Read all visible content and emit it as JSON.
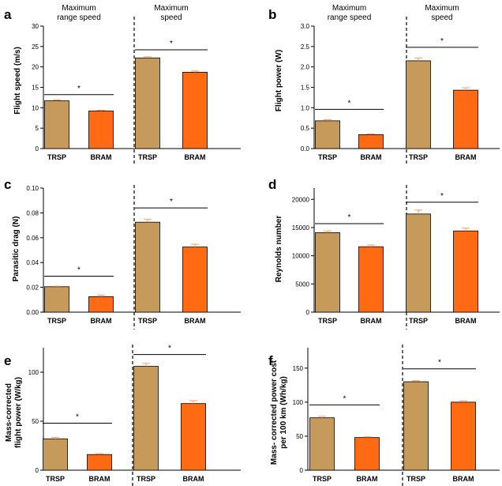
{
  "colors": {
    "TRSP": "#c59a5a",
    "BRAM": "#ff6a13",
    "error_bar": "#ff9a66",
    "axis": "#000000"
  },
  "group_labels": {
    "range": [
      "Maximum",
      "range speed"
    ],
    "max": [
      "Maximum",
      "speed"
    ]
  },
  "chart_data": [
    {
      "panel": "a",
      "type": "bar",
      "ylabel": [
        "Flight speed (m/s)"
      ],
      "ylim": [
        0,
        30
      ],
      "yticks": [
        "0",
        "5",
        "10",
        "15",
        "20",
        "25",
        "30"
      ],
      "ytick_values": [
        0,
        5,
        10,
        15,
        20,
        25,
        30
      ],
      "categories": [
        "TRSP",
        "BRAM",
        "TRSP",
        "BRAM"
      ],
      "groups": [
        "Maximum range speed",
        "Maximum range speed",
        "Maximum speed",
        "Maximum speed"
      ],
      "values": [
        11.7,
        9.2,
        22.2,
        18.7
      ],
      "errors": [
        0.2,
        0.2,
        0.3,
        0.3
      ],
      "significance": [
        {
          "bars": [
            0,
            1
          ],
          "y": 13.2,
          "mark": "*"
        },
        {
          "bars": [
            2,
            3
          ],
          "y": 24.2,
          "mark": "*"
        }
      ],
      "show_group_labels": true
    },
    {
      "panel": "b",
      "type": "bar",
      "ylabel": [
        "Flight power (W)"
      ],
      "ylim": [
        0,
        3.0
      ],
      "yticks": [
        "0.0",
        "0.5",
        "1.0",
        "1.5",
        "2.0",
        "2.5",
        "3.0"
      ],
      "ytick_values": [
        0,
        0.5,
        1.0,
        1.5,
        2.0,
        2.5,
        3.0
      ],
      "categories": [
        "TRSP",
        "BRAM",
        "TRSP",
        "BRAM"
      ],
      "groups": [
        "Maximum range speed",
        "Maximum range speed",
        "Maximum speed",
        "Maximum speed"
      ],
      "values": [
        0.68,
        0.34,
        2.15,
        1.43
      ],
      "errors": [
        0.03,
        0.02,
        0.07,
        0.06
      ],
      "significance": [
        {
          "bars": [
            0,
            1
          ],
          "y": 0.96,
          "mark": "*"
        },
        {
          "bars": [
            2,
            3
          ],
          "y": 2.48,
          "mark": "*"
        }
      ],
      "show_group_labels": true
    },
    {
      "panel": "c",
      "type": "bar",
      "ylabel": [
        "Parasitic drag (N)"
      ],
      "ylim": [
        0,
        0.1
      ],
      "yticks": [
        "0.00",
        "0.02",
        "0.04",
        "0.06",
        "0.08",
        "0.10"
      ],
      "ytick_values": [
        0,
        0.02,
        0.04,
        0.06,
        0.08,
        0.1
      ],
      "categories": [
        "TRSP",
        "BRAM",
        "TRSP",
        "BRAM"
      ],
      "groups": [
        "Maximum range speed",
        "Maximum range speed",
        "Maximum speed",
        "Maximum speed"
      ],
      "values": [
        0.0205,
        0.0125,
        0.0725,
        0.0525
      ],
      "errors": [
        0.0004,
        0.0012,
        0.0022,
        0.0022
      ],
      "significance": [
        {
          "bars": [
            0,
            1
          ],
          "y": 0.029,
          "mark": "*"
        },
        {
          "bars": [
            2,
            3
          ],
          "y": 0.084,
          "mark": "*"
        }
      ],
      "show_group_labels": false
    },
    {
      "panel": "d",
      "type": "bar",
      "ylabel": [
        "Reynolds number"
      ],
      "ylim": [
        0,
        22000
      ],
      "yticks": [
        "0",
        "5000",
        "10000",
        "15000",
        "20000"
      ],
      "ytick_values": [
        0,
        5000,
        10000,
        15000,
        20000
      ],
      "categories": [
        "TRSP",
        "BRAM",
        "TRSP",
        "BRAM"
      ],
      "groups": [
        "Maximum range speed",
        "Maximum range speed",
        "Maximum speed",
        "Maximum speed"
      ],
      "values": [
        14100,
        11600,
        17400,
        14400
      ],
      "errors": [
        300,
        300,
        700,
        500
      ],
      "significance": [
        {
          "bars": [
            0,
            1
          ],
          "y": 15700,
          "mark": "*"
        },
        {
          "bars": [
            2,
            3
          ],
          "y": 19500,
          "mark": "*"
        }
      ],
      "show_group_labels": false
    },
    {
      "panel": "e",
      "type": "bar",
      "ylabel": [
        "Mass-corrected",
        "flight power (W/kg)"
      ],
      "ylim": [
        0,
        125
      ],
      "yticks": [
        "0",
        "50",
        "100"
      ],
      "ytick_values": [
        0,
        50,
        100
      ],
      "categories": [
        "TRSP",
        "BRAM",
        "TRSP",
        "BRAM"
      ],
      "groups": [
        "Maximum range speed",
        "Maximum range speed",
        "Maximum speed",
        "Maximum speed"
      ],
      "values": [
        32,
        16,
        106,
        68
      ],
      "errors": [
        1.5,
        0.8,
        3,
        3
      ],
      "significance": [
        {
          "bars": [
            0,
            1
          ],
          "y": 48,
          "mark": "*"
        },
        {
          "bars": [
            2,
            3
          ],
          "y": 118,
          "mark": "*"
        }
      ],
      "show_group_labels": false
    },
    {
      "panel": "f",
      "type": "bar",
      "ylabel": [
        "Mass- corrected power cost",
        "per 100 km (Wh/kg)"
      ],
      "ylim": [
        0,
        180
      ],
      "yticks": [
        "0",
        "50",
        "100",
        "150"
      ],
      "ytick_values": [
        0,
        50,
        100,
        150
      ],
      "categories": [
        "TRSP",
        "BRAM",
        "TRSP",
        "BRAM"
      ],
      "groups": [
        "Maximum range speed",
        "Maximum range speed",
        "Maximum speed",
        "Maximum speed"
      ],
      "values": [
        77,
        48,
        130,
        100
      ],
      "errors": [
        2,
        1,
        1.5,
        2
      ],
      "significance": [
        {
          "bars": [
            0,
            1
          ],
          "y": 96,
          "mark": "*"
        },
        {
          "bars": [
            2,
            3
          ],
          "y": 149,
          "mark": "*"
        }
      ],
      "show_group_labels": false
    }
  ]
}
